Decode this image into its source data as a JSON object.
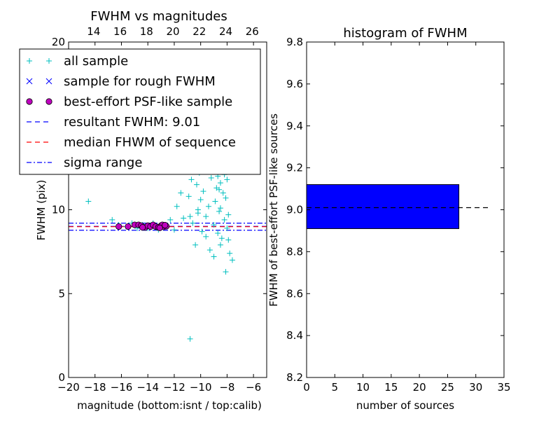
{
  "chart_data": [
    {
      "type": "scatter",
      "title": "FWHM vs magnitudes",
      "xlabel": "magnitude (bottom:isnt / top:calib)",
      "ylabel": "FWHM (pix)",
      "xlim": [
        -20,
        -5
      ],
      "ylim": [
        0,
        20
      ],
      "x_ticks": [
        -20,
        -18,
        -16,
        -14,
        -12,
        -10,
        -8,
        -6
      ],
      "x_tick_labels": [
        "−20",
        "−18",
        "−16",
        "−14",
        "−12",
        "−10",
        "−8",
        "−6"
      ],
      "y_ticks": [
        0,
        5,
        10,
        20
      ],
      "y_tick_labels": [
        "0",
        "5",
        "10",
        "20"
      ],
      "top_axis": {
        "ticks": [
          14,
          16,
          18,
          20,
          22,
          24,
          26
        ],
        "tick_labels": [
          "14",
          "16",
          "18",
          "20",
          "22",
          "24",
          "26"
        ],
        "offset": 32.1
      },
      "grid": false,
      "legend_position": "top-left",
      "hlines": [
        {
          "name": "resultant FWHM: 9.01",
          "y": 9.01,
          "color": "#0000ff",
          "style": "dashed"
        },
        {
          "name": "median FHWM of sequence",
          "y": 8.99,
          "color": "#ff0000",
          "style": "dashed"
        },
        {
          "name": "sigma range",
          "y": 9.2,
          "color": "#0000ff",
          "style": "dashdot"
        },
        {
          "name": "sigma range",
          "y": 8.78,
          "color": "#0000ff",
          "style": "dashdot"
        }
      ],
      "series": [
        {
          "name": "all sample",
          "marker": "+",
          "color": "#00bfbf",
          "points": [
            [
              -18.5,
              10.5
            ],
            [
              -16.7,
              9.4
            ],
            [
              -16.2,
              9.1
            ],
            [
              -15.6,
              9.0
            ],
            [
              -15.2,
              9.2
            ],
            [
              -14.8,
              8.9
            ],
            [
              -14.4,
              9.1
            ],
            [
              -14.0,
              8.9
            ],
            [
              -13.6,
              9.2
            ],
            [
              -13.2,
              8.8
            ],
            [
              -12.7,
              9.0
            ],
            [
              -12.3,
              9.4
            ],
            [
              -12.0,
              8.8
            ],
            [
              -11.8,
              10.2
            ],
            [
              -11.5,
              11.0
            ],
            [
              -11.3,
              9.5
            ],
            [
              -11.0,
              12.4
            ],
            [
              -10.9,
              10.8
            ],
            [
              -10.8,
              2.3
            ],
            [
              -10.7,
              11.8
            ],
            [
              -10.6,
              9.2
            ],
            [
              -10.5,
              13.0
            ],
            [
              -10.4,
              7.9
            ],
            [
              -10.3,
              11.5
            ],
            [
              -10.2,
              9.8
            ],
            [
              -10.1,
              12.2
            ],
            [
              -10.0,
              10.6
            ],
            [
              -9.9,
              8.7
            ],
            [
              -9.8,
              11.1
            ],
            [
              -9.7,
              13.2
            ],
            [
              -9.6,
              9.6
            ],
            [
              -9.5,
              12.7
            ],
            [
              -9.4,
              10.2
            ],
            [
              -9.3,
              7.6
            ],
            [
              -9.2,
              11.9
            ],
            [
              -9.1,
              13.8
            ],
            [
              -9.0,
              9.1
            ],
            [
              -8.9,
              12.4
            ],
            [
              -8.9,
              10.5
            ],
            [
              -8.8,
              11.3
            ],
            [
              -8.8,
              13.5
            ],
            [
              -8.7,
              8.6
            ],
            [
              -8.7,
              12.0
            ],
            [
              -8.6,
              9.9
            ],
            [
              -8.6,
              13.9
            ],
            [
              -8.5,
              11.6
            ],
            [
              -8.5,
              10.1
            ],
            [
              -8.4,
              12.8
            ],
            [
              -8.4,
              8.3
            ],
            [
              -8.3,
              11.0
            ],
            [
              -8.3,
              13.3
            ],
            [
              -8.2,
              9.4
            ],
            [
              -8.2,
              12.1
            ],
            [
              -8.1,
              10.7
            ],
            [
              -8.1,
              6.3
            ],
            [
              -8.0,
              8.9
            ],
            [
              -8.0,
              11.8
            ],
            [
              -7.9,
              9.7
            ],
            [
              -7.9,
              8.2
            ],
            [
              -7.8,
              7.4
            ],
            [
              -7.6,
              7.0
            ],
            [
              -9.3,
              13.0
            ],
            [
              -9.0,
              13.6
            ],
            [
              -8.8,
              12.6
            ],
            [
              -8.6,
              11.2
            ],
            [
              -10.2,
              10.0
            ],
            [
              -9.6,
              8.4
            ],
            [
              -10.8,
              9.6
            ],
            [
              -9.0,
              7.2
            ],
            [
              -8.5,
              7.9
            ]
          ]
        },
        {
          "name": "sample for rough FWHM",
          "marker": "x",
          "color": "#0000ff",
          "points": []
        },
        {
          "name": "best-effort PSF-like sample",
          "marker": "o",
          "color": "#bf00bf",
          "points": [
            [
              -16.2,
              9.0
            ],
            [
              -15.5,
              9.0
            ],
            [
              -15.0,
              9.1
            ],
            [
              -14.7,
              9.1
            ],
            [
              -14.5,
              9.05
            ],
            [
              -14.2,
              8.95
            ],
            [
              -14.0,
              9.05
            ],
            [
              -13.8,
              9.0
            ],
            [
              -13.6,
              9.1
            ],
            [
              -13.4,
              9.0
            ],
            [
              -13.2,
              8.95
            ],
            [
              -13.0,
              9.05
            ],
            [
              -12.8,
              8.98
            ],
            [
              -12.6,
              9.02
            ],
            [
              -12.9,
              9.1
            ],
            [
              -14.4,
              8.95
            ],
            [
              -13.1,
              8.92
            ],
            [
              -12.7,
              9.08
            ]
          ]
        }
      ]
    },
    {
      "type": "bar",
      "orientation": "horizontal",
      "title": "histogram of FWHM",
      "xlabel": "number of sources",
      "ylabel": "FWHM of best-effort PSF-like sources",
      "xlim": [
        0,
        35
      ],
      "ylim": [
        8.2,
        9.8
      ],
      "x_ticks": [
        0,
        5,
        10,
        15,
        20,
        25,
        30,
        35
      ],
      "y_ticks": [
        8.2,
        8.4,
        8.6,
        8.8,
        9.0,
        9.2,
        9.4,
        9.6,
        9.8
      ],
      "y_tick_labels": [
        "8.2",
        "8.4",
        "8.6",
        "8.8",
        "9.0",
        "9.2",
        "9.4",
        "9.6",
        "9.8"
      ],
      "grid": false,
      "bars": [
        {
          "y_low": 8.91,
          "y_high": 9.12,
          "value": 27,
          "color": "#0000ff"
        }
      ],
      "hline": {
        "y": 9.01,
        "xmax": 32.5,
        "color": "#000000",
        "style": "dashed"
      }
    }
  ]
}
